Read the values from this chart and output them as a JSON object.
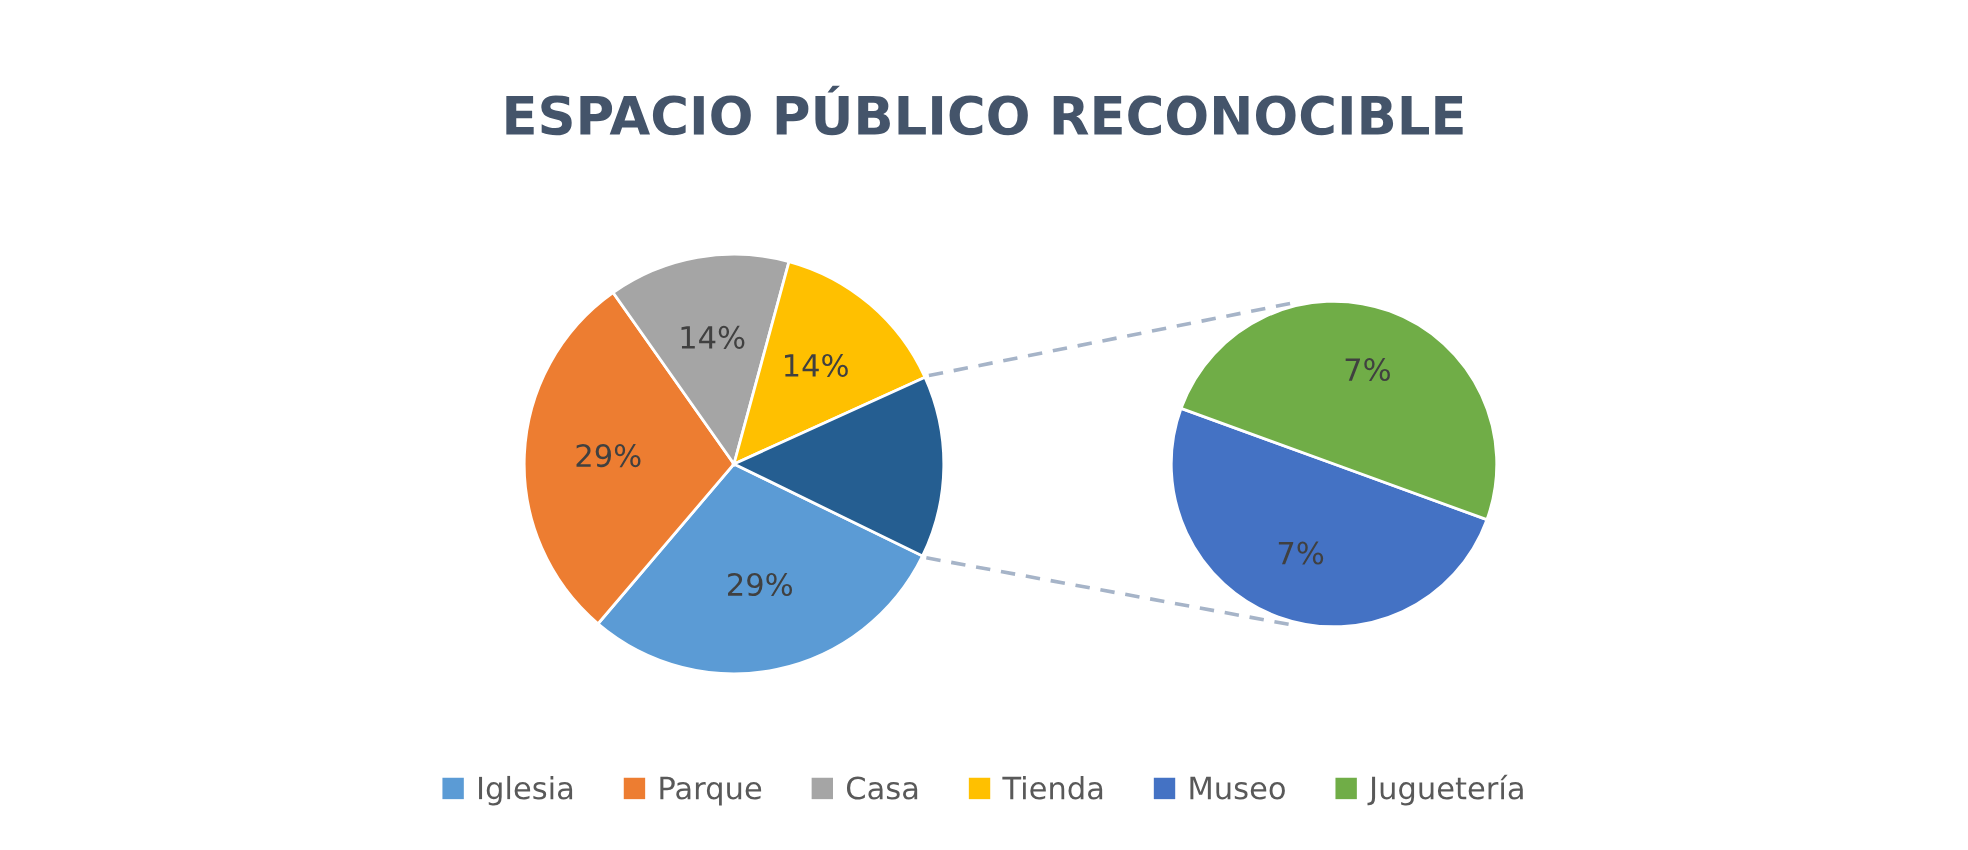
{
  "chart_data": [
    {
      "type": "pie",
      "title": "ESPACIO PÚBLICO RECONOCIBLE",
      "categories": [
        "Iglesia",
        "Parque",
        "Casa",
        "Tienda",
        null
      ],
      "values": [
        29,
        29,
        14,
        14,
        14
      ],
      "colors": [
        "#5b9bd5",
        "#ed7d31",
        "#a5a5a5",
        "#ffc000",
        "#255e91"
      ],
      "value_labels": [
        "29%",
        "29%",
        "14%",
        "14%",
        null
      ],
      "legend": "bottom"
    },
    {
      "type": "pie",
      "categories": [
        "Museo",
        "Juguetería"
      ],
      "values": [
        7,
        7
      ],
      "colors": [
        "#4472c4",
        "#70ad47"
      ],
      "value_labels": [
        "7%",
        "7%"
      ],
      "legend": "bottom"
    }
  ]
}
